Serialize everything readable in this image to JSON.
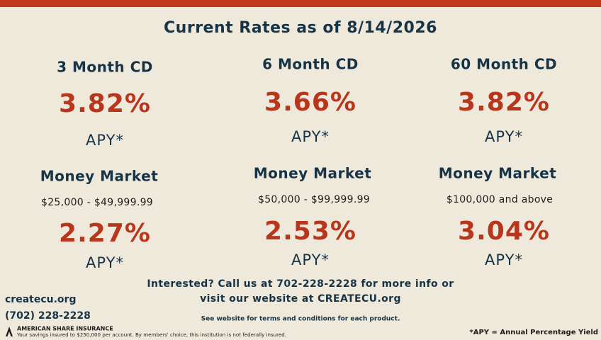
{
  "header": {
    "title": "Current Rates as of 8/14/2026"
  },
  "products": [
    {
      "name": "3 Month CD",
      "rate": "3.82%",
      "apy": "APY*"
    },
    {
      "name": "6 Month CD",
      "rate": "3.66%",
      "apy": "APY*"
    },
    {
      "name": "60 Month CD",
      "rate": "3.82%",
      "apy": "APY*"
    }
  ],
  "money_market": [
    {
      "name": "Money Market",
      "range": "$25,000 - $49,999.99",
      "rate": "2.27%",
      "apy": "APY*"
    },
    {
      "name": "Money Market",
      "range": "$50,000 - $99,999.99",
      "rate": "2.53%",
      "apy": "APY*"
    },
    {
      "name": "Money Market",
      "range": "$100,000 and above",
      "rate": "3.04%",
      "apy": "APY*"
    }
  ],
  "footer": {
    "contact_line1": "Interested? Call us at 702-228-2228 for more info or",
    "contact_line2": "visit our website at CREATECU.org",
    "terms": "See website for terms and conditions for each product.",
    "website": "createcu.org",
    "phone": "(702) 228-2228",
    "insurer": "AMERICAN SHARE INSURANCE",
    "insurance_note": "Your savings insured to $250,000 per account. By members' choice, this institution is not federally insured.",
    "apy_note": "*APY = Annual Percentage Yield"
  }
}
